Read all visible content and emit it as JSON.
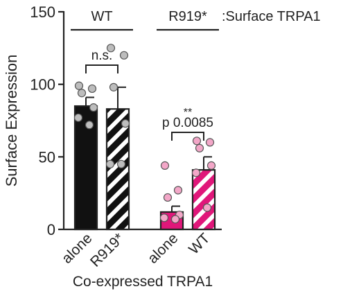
{
  "chart_data": {
    "type": "bar",
    "ylabel": "Surface Expression",
    "xlabel": "Co-expressed TRPA1",
    "ylim": [
      0,
      150
    ],
    "yticks": [
      0,
      50,
      100,
      150
    ],
    "legend_note": ":Surface TRPA1",
    "groups": [
      {
        "label": "WT",
        "categories": [
          0,
          1
        ]
      },
      {
        "label": "R919*",
        "categories": [
          2,
          3
        ]
      }
    ],
    "categories": [
      "alone",
      "R919*",
      "alone",
      "WT"
    ],
    "bars": [
      {
        "category": "alone",
        "group": "WT",
        "mean": 85,
        "sem": 6,
        "fill": "#111111",
        "pattern": "solid",
        "points": [
          99,
          97,
          94,
          84,
          77,
          72
        ],
        "point_color": "#bdbdbd"
      },
      {
        "category": "R919*",
        "group": "WT",
        "mean": 83,
        "sem": 15,
        "fill": "#111111",
        "pattern": "white-stripes",
        "points": [
          125,
          120,
          98,
          73,
          45,
          45
        ],
        "point_color": "#bdbdbd"
      },
      {
        "category": "alone",
        "group": "R919*",
        "mean": 12,
        "sem": 4,
        "fill": "#e0177a",
        "pattern": "solid",
        "points": [
          44,
          27,
          22,
          10,
          8,
          7
        ],
        "point_color": "#f3a7c8"
      },
      {
        "category": "WT",
        "group": "R919*",
        "mean": 41,
        "sem": 9,
        "fill": "#e0177a",
        "pattern": "white-stripes",
        "points": [
          61,
          60,
          56,
          44,
          39,
          15
        ],
        "point_color": "#f3a7c8"
      }
    ],
    "annotations": [
      {
        "between": [
          0,
          1
        ],
        "text": "n.s."
      },
      {
        "between": [
          2,
          3
        ],
        "text": "p 0.0085",
        "stars": "**"
      }
    ]
  }
}
